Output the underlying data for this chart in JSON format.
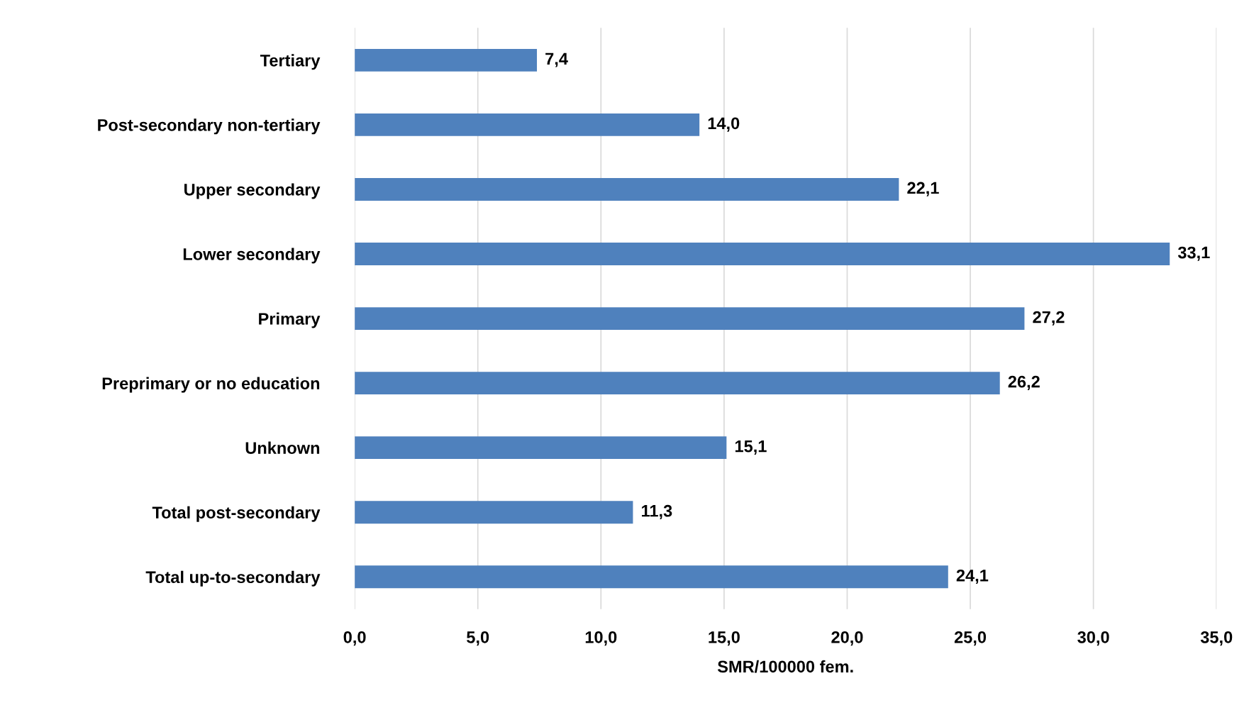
{
  "chart_data": {
    "type": "bar",
    "orientation": "horizontal",
    "xlabel": "SMR/100000 fem.",
    "categories": [
      "Tertiary",
      "Post-secondary non-tertiary",
      "Upper secondary",
      "Lower secondary",
      "Primary",
      "Preprimary or no education",
      "Unknown",
      "Total post-secondary",
      "Total up-to-secondary"
    ],
    "values": [
      7.4,
      14.0,
      22.1,
      33.1,
      27.2,
      26.2,
      15.1,
      11.3,
      24.1
    ],
    "value_labels": [
      "7,4",
      "14,0",
      "22,1",
      "33,1",
      "27,2",
      "26,2",
      "15,1",
      "11,3",
      "24,1"
    ],
    "color": "#4f81bd",
    "xlim": [
      0,
      35
    ],
    "xticks": [
      {
        "value": 0,
        "label": "0,0"
      },
      {
        "value": 5,
        "label": "5,0"
      },
      {
        "value": 10,
        "label": "10,0"
      },
      {
        "value": 15,
        "label": "15,0"
      },
      {
        "value": 20,
        "label": "20,0"
      },
      {
        "value": 25,
        "label": "25,0"
      },
      {
        "value": 30,
        "label": "30,0"
      },
      {
        "value": 35,
        "label": "35,0"
      }
    ],
    "grid": "x",
    "legend": false
  }
}
